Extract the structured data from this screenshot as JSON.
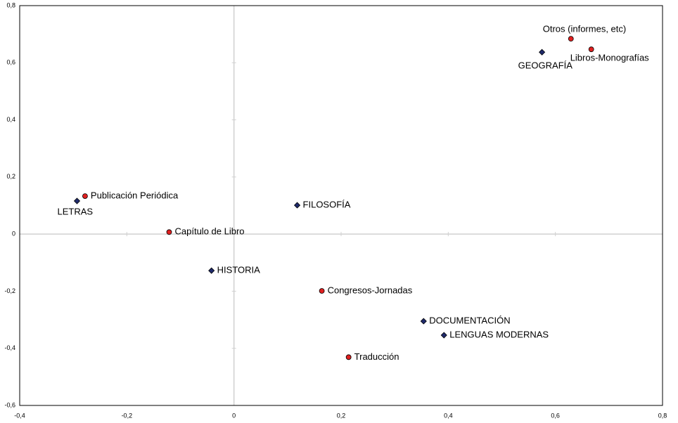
{
  "chart_data": {
    "type": "scatter",
    "xlim": [
      -0.4,
      0.8
    ],
    "xticks": [
      {
        "value": -0.4,
        "label": "-0,4"
      },
      {
        "value": -0.2,
        "label": "-0,2"
      },
      0,
      {
        "value": 0.2,
        "label": "0,2"
      },
      {
        "value": 0.4,
        "label": "0,4"
      },
      {
        "value": 0.6,
        "label": "0,6"
      },
      {
        "value": 0.8,
        "label": "0,8"
      }
    ],
    "ylim": [
      -0.6,
      0.8
    ],
    "yticks": [
      {
        "value": -0.6,
        "label": "-0,6"
      },
      {
        "value": -0.4,
        "label": "-0,4"
      },
      {
        "value": -0.2,
        "label": "-0,2"
      },
      0,
      {
        "value": 0.2,
        "label": "0,2"
      },
      {
        "value": 0.4,
        "label": "0,4"
      },
      {
        "value": 0.6,
        "label": "0,6"
      },
      {
        "value": 0.8,
        "label": "0,8"
      }
    ],
    "grid": false,
    "series": [
      {
        "color": "#1f2a6b",
        "marker": "diamond",
        "labels": [
          "GEOGRAFÍA",
          "LETRAS",
          "FILOSOFÍA",
          "HISTORIA",
          "DOCUMENTACIÓN",
          "LENGUAS MODERNAS"
        ],
        "x": [
          0.575,
          -0.293,
          0.118,
          -0.042,
          0.354,
          0.392
        ],
        "values": [
          0.637,
          0.116,
          0.101,
          -0.128,
          -0.305,
          -0.354
        ]
      },
      {
        "color": "#e02020",
        "marker": "circle",
        "labels": [
          "Otros (informes, etc)",
          "Libros-Monografías",
          "Publicación Periódica",
          "Capítulo de Libro",
          "Congresos-Jornadas",
          "Traducción"
        ],
        "x": [
          0.629,
          0.667,
          -0.278,
          -0.121,
          0.164,
          0.214
        ],
        "values": [
          0.684,
          0.647,
          0.133,
          0.007,
          -0.199,
          -0.431
        ]
      }
    ]
  }
}
